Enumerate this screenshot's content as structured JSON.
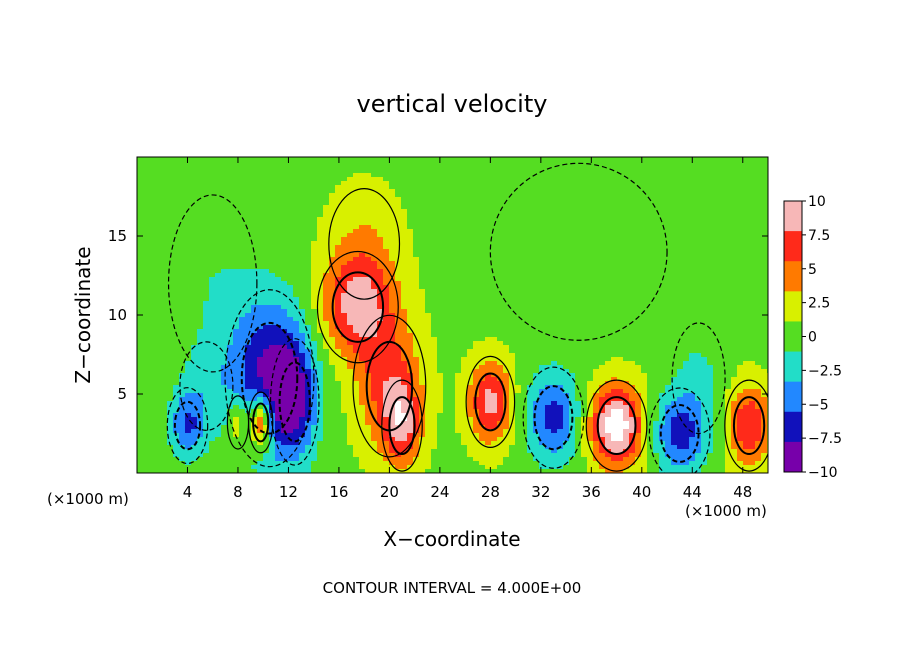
{
  "chart_data": {
    "type": "heatmap",
    "title": "vertical velocity",
    "xlabel": "X−coordinate",
    "ylabel": "Z−coordinate",
    "x_unit_left": "(×1000 m)",
    "x_unit_right": "(×1000 m)",
    "footer": "CONTOUR INTERVAL = 4.000E+00",
    "xlim": [
      0,
      50
    ],
    "ylim": [
      0,
      20
    ],
    "x_ticks": [
      "4",
      "8",
      "12",
      "16",
      "20",
      "24",
      "28",
      "32",
      "36",
      "40",
      "44",
      "48"
    ],
    "y_ticks": [
      "5",
      "10",
      "15"
    ],
    "colorbar": {
      "range": [
        -10,
        10
      ],
      "labels": [
        "10",
        "7.5",
        "5",
        "2.5",
        "0",
        "−2.5",
        "−5",
        "−7.5",
        "−10"
      ],
      "colors": [
        "#f7b7b7",
        "#ff2a1a",
        "#ff7a00",
        "#d8f000",
        "#55dd22",
        "#22ddc8",
        "#2288ff",
        "#1111bb",
        "#7700aa"
      ]
    },
    "grid": false,
    "features": [
      {
        "x": 10.5,
        "z": 6.0,
        "value": -9,
        "sx": 2.2,
        "sz": 3.5
      },
      {
        "x": 12.5,
        "z": 4.5,
        "value": -6,
        "sx": 1.2,
        "sz": 2.5
      },
      {
        "x": 9.8,
        "z": 3.2,
        "value": 10,
        "sx": 0.6,
        "sz": 1.2
      },
      {
        "x": 8.0,
        "z": 3.2,
        "value": 4.5,
        "sx": 0.6,
        "sz": 1.2
      },
      {
        "x": 4.0,
        "z": 3.0,
        "value": -6,
        "sx": 1.0,
        "sz": 1.5
      },
      {
        "x": 5.5,
        "z": 5.5,
        "value": -2,
        "sx": 1.5,
        "sz": 2.0
      },
      {
        "x": 6.0,
        "z": 12.0,
        "value": -1.5,
        "sx": 2.5,
        "sz": 4.0
      },
      {
        "x": 17.5,
        "z": 10.5,
        "value": 8,
        "sx": 2.0,
        "sz": 2.2
      },
      {
        "x": 20.0,
        "z": 5.5,
        "value": 6,
        "sx": 1.8,
        "sz": 2.8
      },
      {
        "x": 21.0,
        "z": 3.0,
        "value": 6,
        "sx": 1.0,
        "sz": 1.8
      },
      {
        "x": 18.0,
        "z": 14.5,
        "value": 2.5,
        "sx": 2.0,
        "sz": 2.5
      },
      {
        "x": 28.0,
        "z": 4.5,
        "value": 8,
        "sx": 1.2,
        "sz": 1.8
      },
      {
        "x": 33.0,
        "z": 3.5,
        "value": -7,
        "sx": 1.5,
        "sz": 2.0
      },
      {
        "x": 38.0,
        "z": 3.0,
        "value": 11,
        "sx": 1.5,
        "sz": 1.8
      },
      {
        "x": 43.0,
        "z": 2.5,
        "value": -7,
        "sx": 1.5,
        "sz": 1.8
      },
      {
        "x": 44.5,
        "z": 6.0,
        "value": -2,
        "sx": 1.5,
        "sz": 2.5
      },
      {
        "x": 48.5,
        "z": 3.0,
        "value": 7,
        "sx": 1.2,
        "sz": 1.8
      },
      {
        "x": 35.0,
        "z": 14.0,
        "value": -0.8,
        "sx": 5.0,
        "sz": 4.0
      }
    ]
  }
}
